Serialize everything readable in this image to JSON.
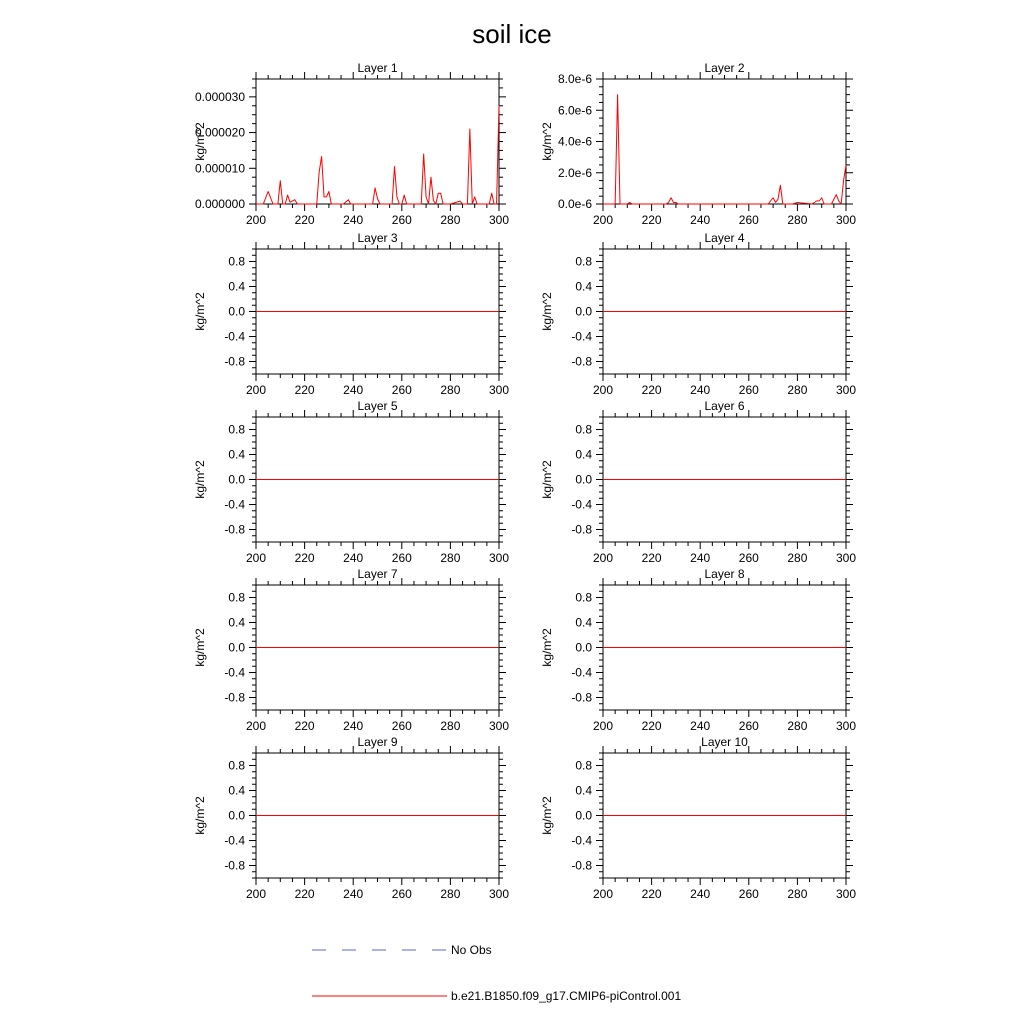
{
  "title": "soil ice",
  "legend": {
    "obs_label": "No Obs",
    "obs_color": "#5b67d6",
    "model_label": "b.e21.B1850.f09_g17.CMIP6-piControl.001",
    "model_color": "#ff0000"
  },
  "chart_data": [
    {
      "type": "line",
      "title": "Layer 1",
      "ylabel": "kg/m^2",
      "xlim": [
        200,
        300
      ],
      "xticks": [
        200,
        220,
        240,
        260,
        280,
        300
      ],
      "ylim": [
        0,
        3.5e-05
      ],
      "yticks": [
        0,
        1e-05,
        2e-05,
        3e-05
      ],
      "yticklabels": [
        "0.000000",
        "0.000010",
        "0.000020",
        "0.000030"
      ],
      "series": [
        {
          "name": "b.e21.B1850.f09_g17.CMIP6-piControl.001",
          "x": [
            200,
            203,
            205,
            207,
            209,
            210,
            211,
            212,
            213,
            214,
            216,
            217,
            218,
            220,
            225,
            226,
            227,
            228,
            229,
            230,
            231,
            232,
            236,
            238,
            239,
            240,
            241,
            248,
            249,
            250,
            251,
            252,
            256,
            257,
            258,
            259,
            260,
            261,
            262,
            263,
            264,
            266,
            268,
            269,
            270,
            271,
            272,
            273,
            274,
            275,
            276,
            277,
            278,
            279,
            280,
            284,
            285,
            286,
            287,
            288,
            289,
            290,
            291,
            292,
            295,
            296,
            297,
            298,
            299,
            300
          ],
          "y": [
            0,
            0,
            3.5e-06,
            0,
            0,
            6.5e-06,
            0,
            0,
            2.5e-06,
            5e-07,
            1.2e-06,
            0,
            0,
            0,
            0,
            9e-06,
            1.33e-05,
            2e-06,
            2e-06,
            3.5e-06,
            0,
            0,
            0,
            1.2e-06,
            0,
            0,
            0,
            0,
            4.5e-06,
            1.5e-06,
            0,
            0,
            0,
            1.05e-05,
            2e-06,
            0,
            0,
            2.5e-06,
            0,
            0,
            0,
            0,
            0,
            1.4e-05,
            2e-06,
            0,
            7.5e-06,
            1e-06,
            0,
            3e-06,
            3e-06,
            0,
            0,
            0,
            0,
            8e-07,
            0,
            0,
            0,
            2.1e-05,
            0,
            2e-06,
            0,
            0,
            0,
            0,
            3e-06,
            0,
            0,
            2.75e-05
          ]
        }
      ]
    },
    {
      "type": "line",
      "title": "Layer 2",
      "ylabel": "kg/m^2",
      "xlim": [
        200,
        300
      ],
      "xticks": [
        200,
        220,
        240,
        260,
        280,
        300
      ],
      "ylim": [
        0,
        8e-06
      ],
      "yticks": [
        0,
        2e-06,
        4e-06,
        6e-06,
        8e-06
      ],
      "yticklabels": [
        "0.0e-6",
        "2.0e-6",
        "4.0e-6",
        "6.0e-6",
        "8.0e-6"
      ],
      "series": [
        {
          "name": "b.e21.B1850.f09_g17.CMIP6-piControl.001",
          "x": [
            200,
            204,
            205,
            206,
            207,
            208,
            210,
            211,
            212,
            226,
            227,
            228,
            229,
            230,
            231,
            232,
            260,
            262,
            268,
            270,
            271,
            272,
            273,
            274,
            275,
            278,
            280,
            286,
            288,
            289,
            290,
            291,
            292,
            294,
            296,
            297,
            298,
            299,
            300
          ],
          "y": [
            0,
            0,
            0,
            7e-06,
            0,
            0,
            0,
            1e-07,
            0,
            0,
            1e-07,
            4e-07,
            1e-07,
            1e-07,
            0,
            0,
            0,
            0,
            0,
            4e-07,
            1e-07,
            3e-07,
            1.2e-06,
            0,
            0,
            0,
            1e-07,
            0,
            2e-07,
            2e-07,
            4e-07,
            0,
            0,
            0,
            6e-07,
            2e-07,
            0,
            1.5e-06,
            2.5e-06
          ]
        }
      ]
    },
    {
      "type": "line",
      "title": "Layer 3",
      "ylabel": "kg/m^2",
      "xlim": [
        200,
        300
      ],
      "xticks": [
        200,
        220,
        240,
        260,
        280,
        300
      ],
      "ylim": [
        -1,
        1
      ],
      "yticks": [
        -0.8,
        -0.4,
        0,
        0.4,
        0.8
      ],
      "yticklabels": [
        "-0.8",
        "-0.4",
        "0.0",
        "0.4",
        "0.8"
      ],
      "series": [
        {
          "name": "b.e21.B1850.f09_g17.CMIP6-piControl.001",
          "x": [
            200,
            300
          ],
          "y": [
            0,
            0
          ]
        }
      ]
    },
    {
      "type": "line",
      "title": "Layer 4",
      "ylabel": "kg/m^2",
      "xlim": [
        200,
        300
      ],
      "xticks": [
        200,
        220,
        240,
        260,
        280,
        300
      ],
      "ylim": [
        -1,
        1
      ],
      "yticks": [
        -0.8,
        -0.4,
        0,
        0.4,
        0.8
      ],
      "yticklabels": [
        "-0.8",
        "-0.4",
        "0.0",
        "0.4",
        "0.8"
      ],
      "series": [
        {
          "name": "b.e21.B1850.f09_g17.CMIP6-piControl.001",
          "x": [
            200,
            300
          ],
          "y": [
            0,
            0
          ]
        }
      ]
    },
    {
      "type": "line",
      "title": "Layer 5",
      "ylabel": "kg/m^2",
      "xlim": [
        200,
        300
      ],
      "xticks": [
        200,
        220,
        240,
        260,
        280,
        300
      ],
      "ylim": [
        -1,
        1
      ],
      "yticks": [
        -0.8,
        -0.4,
        0,
        0.4,
        0.8
      ],
      "yticklabels": [
        "-0.8",
        "-0.4",
        "0.0",
        "0.4",
        "0.8"
      ],
      "series": [
        {
          "name": "b.e21.B1850.f09_g17.CMIP6-piControl.001",
          "x": [
            200,
            300
          ],
          "y": [
            0,
            0
          ]
        }
      ]
    },
    {
      "type": "line",
      "title": "Layer 6",
      "ylabel": "kg/m^2",
      "xlim": [
        200,
        300
      ],
      "xticks": [
        200,
        220,
        240,
        260,
        280,
        300
      ],
      "ylim": [
        -1,
        1
      ],
      "yticks": [
        -0.8,
        -0.4,
        0,
        0.4,
        0.8
      ],
      "yticklabels": [
        "-0.8",
        "-0.4",
        "0.0",
        "0.4",
        "0.8"
      ],
      "series": [
        {
          "name": "b.e21.B1850.f09_g17.CMIP6-piControl.001",
          "x": [
            200,
            300
          ],
          "y": [
            0,
            0
          ]
        }
      ]
    },
    {
      "type": "line",
      "title": "Layer 7",
      "ylabel": "kg/m^2",
      "xlim": [
        200,
        300
      ],
      "xticks": [
        200,
        220,
        240,
        260,
        280,
        300
      ],
      "ylim": [
        -1,
        1
      ],
      "yticks": [
        -0.8,
        -0.4,
        0,
        0.4,
        0.8
      ],
      "yticklabels": [
        "-0.8",
        "-0.4",
        "0.0",
        "0.4",
        "0.8"
      ],
      "series": [
        {
          "name": "b.e21.B1850.f09_g17.CMIP6-piControl.001",
          "x": [
            200,
            300
          ],
          "y": [
            0,
            0
          ]
        }
      ]
    },
    {
      "type": "line",
      "title": "Layer 8",
      "ylabel": "kg/m^2",
      "xlim": [
        200,
        300
      ],
      "xticks": [
        200,
        220,
        240,
        260,
        280,
        300
      ],
      "ylim": [
        -1,
        1
      ],
      "yticks": [
        -0.8,
        -0.4,
        0,
        0.4,
        0.8
      ],
      "yticklabels": [
        "-0.8",
        "-0.4",
        "0.0",
        "0.4",
        "0.8"
      ],
      "series": [
        {
          "name": "b.e21.B1850.f09_g17.CMIP6-piControl.001",
          "x": [
            200,
            300
          ],
          "y": [
            0,
            0
          ]
        }
      ]
    },
    {
      "type": "line",
      "title": "Layer 9",
      "ylabel": "kg/m^2",
      "xlim": [
        200,
        300
      ],
      "xticks": [
        200,
        220,
        240,
        260,
        280,
        300
      ],
      "ylim": [
        -1,
        1
      ],
      "yticks": [
        -0.8,
        -0.4,
        0,
        0.4,
        0.8
      ],
      "yticklabels": [
        "-0.8",
        "-0.4",
        "0.0",
        "0.4",
        "0.8"
      ],
      "series": [
        {
          "name": "b.e21.B1850.f09_g17.CMIP6-piControl.001",
          "x": [
            200,
            300
          ],
          "y": [
            0,
            0
          ]
        }
      ]
    },
    {
      "type": "line",
      "title": "Layer 10",
      "ylabel": "kg/m^2",
      "xlim": [
        200,
        300
      ],
      "xticks": [
        200,
        220,
        240,
        260,
        280,
        300
      ],
      "ylim": [
        -1,
        1
      ],
      "yticks": [
        -0.8,
        -0.4,
        0,
        0.4,
        0.8
      ],
      "yticklabels": [
        "-0.8",
        "-0.4",
        "0.0",
        "0.4",
        "0.8"
      ],
      "series": [
        {
          "name": "b.e21.B1850.f09_g17.CMIP6-piControl.001",
          "x": [
            200,
            300
          ],
          "y": [
            0,
            0
          ]
        }
      ]
    }
  ]
}
